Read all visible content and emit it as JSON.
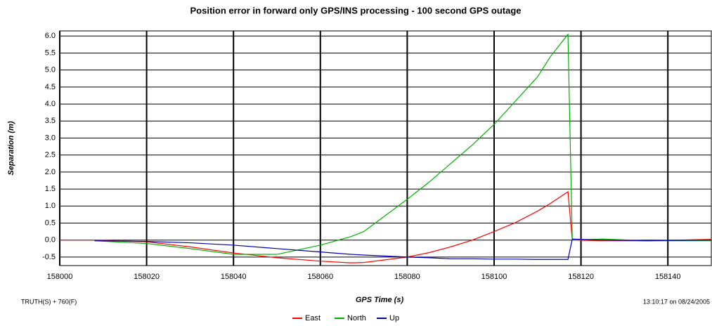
{
  "chart_data": {
    "type": "line",
    "title": "Position error in forward only GPS/INS processing - 100 second GPS outage",
    "x_label": "GPS Time (s)",
    "y_label": "Separation (m)",
    "footnote_left": "TRUTH(S) + 760(F)",
    "footnote_right": "13:10:17 on 08/24/2005",
    "x": [
      158000,
      158008,
      158020,
      158030,
      158040,
      158050,
      158060,
      158067,
      158070,
      158080,
      158085,
      158090,
      158095,
      158100,
      158105,
      158110,
      158113,
      158117,
      158118,
      158125,
      158135,
      158150
    ],
    "series": [
      {
        "name": "East",
        "color": "#ff0000",
        "values": [
          0,
          0,
          -0.05,
          -0.2,
          -0.38,
          -0.52,
          -0.62,
          -0.67,
          -0.66,
          -0.5,
          -0.37,
          -0.2,
          0,
          0.25,
          0.52,
          0.85,
          1.08,
          1.42,
          0,
          -0.02,
          -0.02,
          0.02
        ]
      },
      {
        "name": "North",
        "color": "#00b000",
        "values": [
          null,
          -0.02,
          -0.1,
          -0.25,
          -0.42,
          -0.42,
          -0.15,
          0.1,
          0.25,
          1.2,
          1.7,
          2.25,
          2.8,
          3.4,
          4.1,
          4.8,
          5.4,
          6.05,
          0,
          0.03,
          -0.02,
          -0.02
        ]
      },
      {
        "name": "Up",
        "color": "#0000b0",
        "values": [
          null,
          -0.02,
          -0.04,
          -0.08,
          -0.15,
          -0.25,
          -0.35,
          -0.42,
          -0.44,
          -0.5,
          -0.52,
          -0.55,
          -0.55,
          -0.56,
          -0.56,
          -0.57,
          -0.57,
          -0.57,
          0.03,
          0,
          -0.02,
          0
        ]
      }
    ],
    "xlim": [
      158000,
      158150
    ],
    "ylim": [
      -0.75,
      6.15
    ],
    "xticks": [
      158000,
      158020,
      158040,
      158060,
      158080,
      158100,
      158120,
      158140
    ],
    "yticks": [
      {
        "value": 6,
        "label": "6.0"
      },
      {
        "value": 5.5,
        "label": "5.5"
      },
      {
        "value": 5,
        "label": "5.0"
      },
      {
        "value": 4.5,
        "label": "4.5"
      },
      {
        "value": 4,
        "label": "4.0"
      },
      {
        "value": 3.5,
        "label": "3.5"
      },
      {
        "value": 3,
        "label": "3.0"
      },
      {
        "value": 2.5,
        "label": "2.5"
      },
      {
        "value": 2,
        "label": "2.0"
      },
      {
        "value": 1.5,
        "label": "1.5"
      },
      {
        "value": 1,
        "label": "1.0"
      },
      {
        "value": 0.5,
        "label": "0.5"
      },
      {
        "value": 0,
        "label": "0.0"
      },
      {
        "value": -0.5,
        "label": "-0.5"
      }
    ],
    "grid": true,
    "legend": "bottom"
  }
}
